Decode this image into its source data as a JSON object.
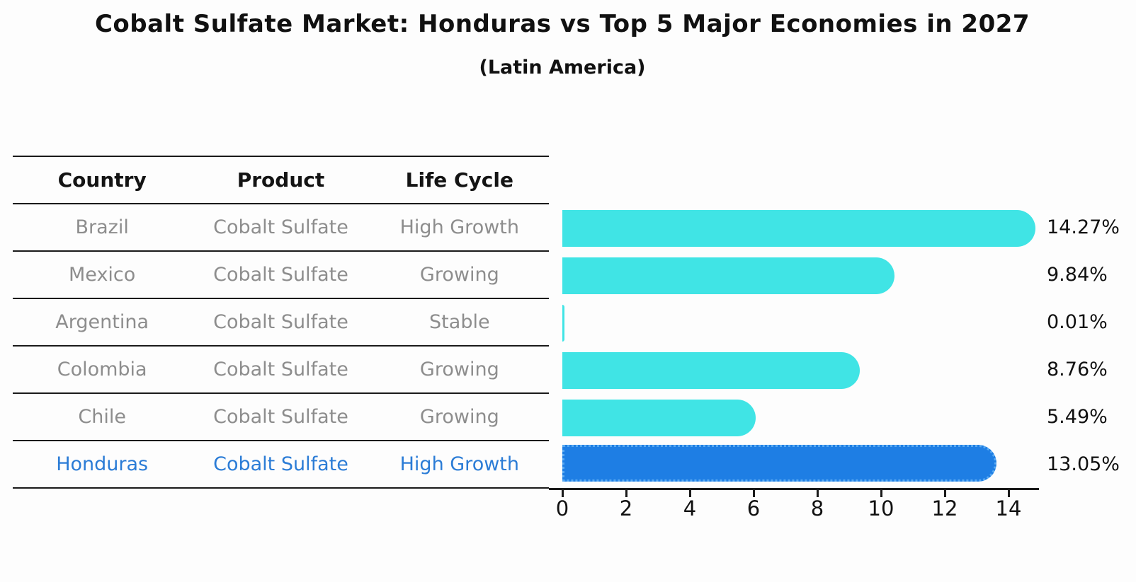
{
  "header": {
    "title": "Cobalt Sulfate Market: Honduras vs Top 5 Major Economies in 2027",
    "subtitle": "(Latin America)"
  },
  "table": {
    "columns": [
      "Country",
      "Product",
      "Life Cycle"
    ],
    "rows": [
      {
        "country": "Brazil",
        "product": "Cobalt Sulfate",
        "life_cycle": "High Growth",
        "highlight": false
      },
      {
        "country": "Mexico",
        "product": "Cobalt Sulfate",
        "life_cycle": "Growing",
        "highlight": false
      },
      {
        "country": "Argentina",
        "product": "Cobalt Sulfate",
        "life_cycle": "Stable",
        "highlight": false
      },
      {
        "country": "Colombia",
        "product": "Cobalt Sulfate",
        "life_cycle": "Growing",
        "highlight": false
      },
      {
        "country": "Chile",
        "product": "Cobalt Sulfate",
        "life_cycle": "Growing",
        "highlight": false
      },
      {
        "country": "Honduras",
        "product": "Cobalt Sulfate",
        "life_cycle": "High Growth",
        "highlight": true
      }
    ]
  },
  "chart_data": {
    "type": "bar",
    "orientation": "horizontal",
    "title": "Cobalt Sulfate Market: Honduras vs Top 5 Major Economies in 2027",
    "subtitle": "(Latin America)",
    "categories": [
      "Brazil",
      "Mexico",
      "Argentina",
      "Colombia",
      "Chile",
      "Honduras"
    ],
    "values": [
      14.27,
      9.84,
      0.01,
      8.76,
      5.49,
      13.05
    ],
    "data_labels": [
      "14.27%",
      "9.84%",
      "0.01%",
      "8.76%",
      "5.49%",
      "13.05%"
    ],
    "highlight_index": 5,
    "xlim": [
      0,
      15.1
    ],
    "x_ticks": [
      0,
      2,
      4,
      6,
      8,
      10,
      12,
      14
    ],
    "grid": false,
    "legend": false
  },
  "colors": {
    "bar_cyan": "#40E4E5",
    "bar_highlight_blue": "#1E7EE4",
    "bar_highlight_edge": "#58A9F2",
    "highlight_text": "#2B7CD6",
    "muted_text": "#8D8D8D",
    "axis_black": "#1A1A1A"
  }
}
